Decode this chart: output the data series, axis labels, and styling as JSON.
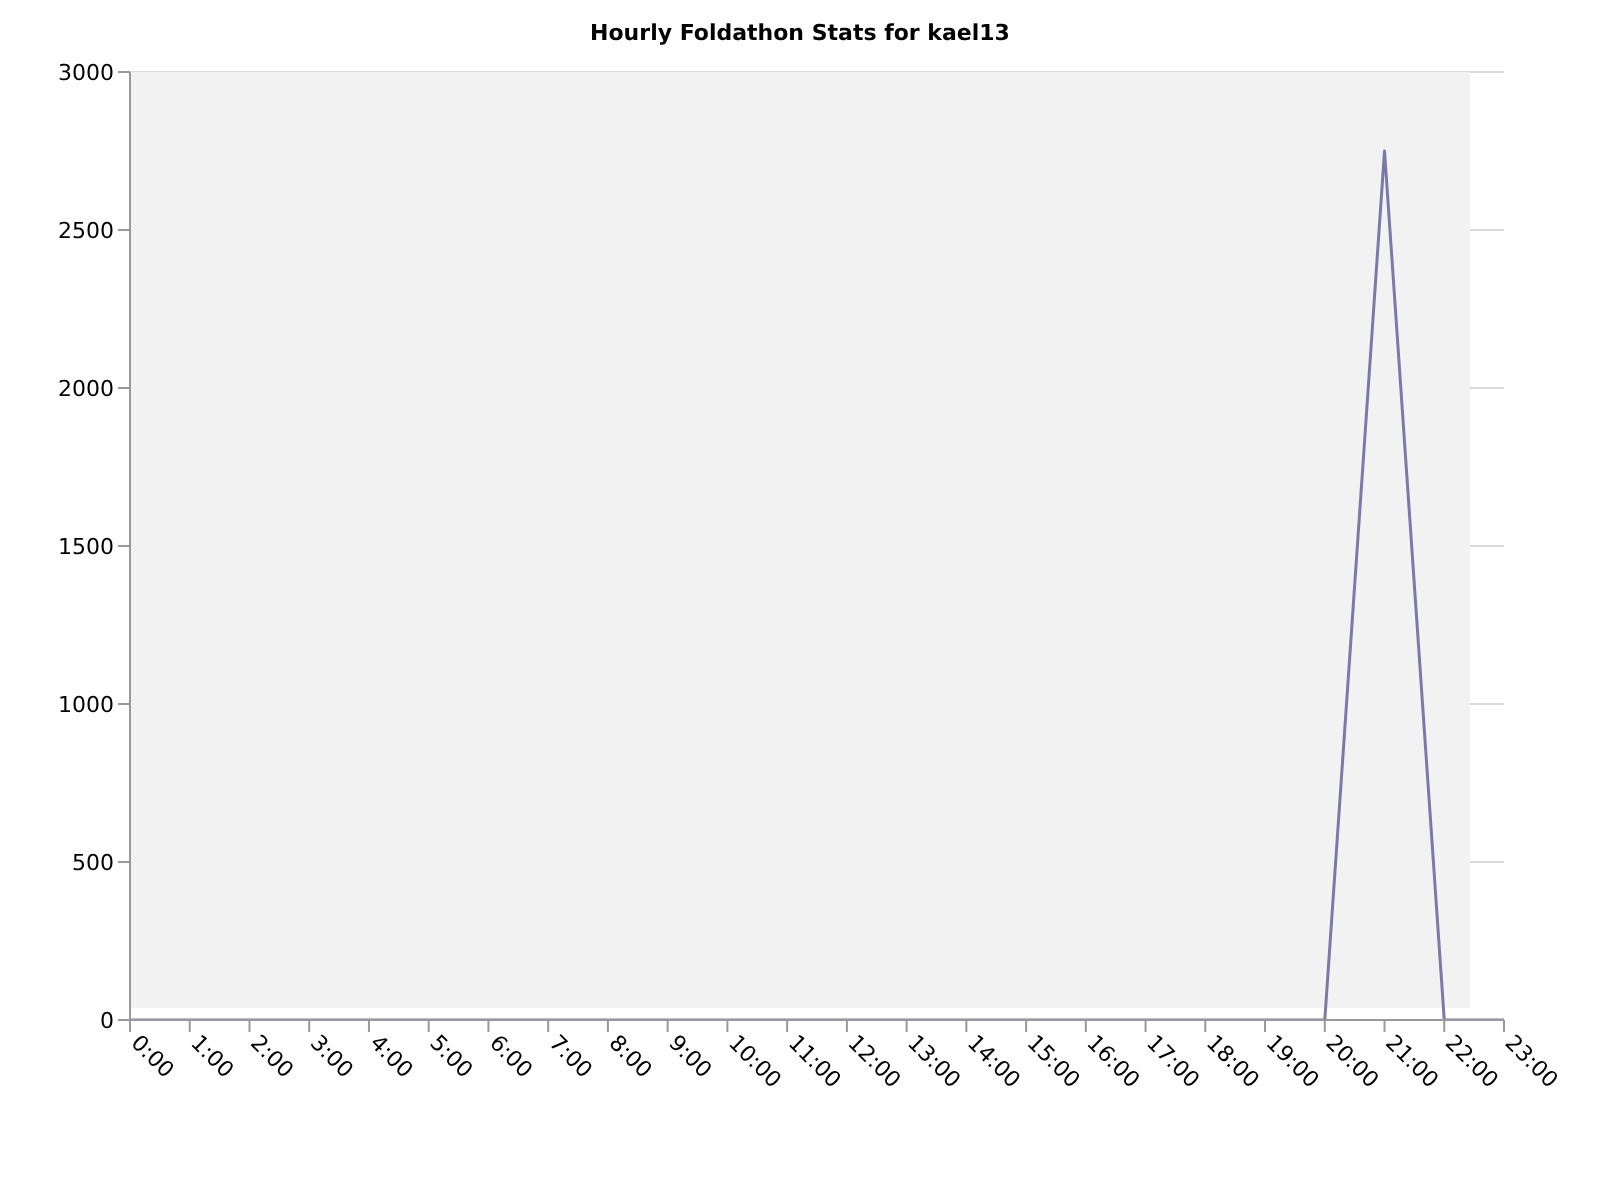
{
  "chart_data": {
    "type": "line",
    "title": "Hourly Foldathon Stats for kael13",
    "categories": [
      "0:00",
      "1:00",
      "2:00",
      "3:00",
      "4:00",
      "5:00",
      "6:00",
      "7:00",
      "8:00",
      "9:00",
      "10:00",
      "11:00",
      "12:00",
      "13:00",
      "14:00",
      "15:00",
      "16:00",
      "17:00",
      "18:00",
      "19:00",
      "20:00",
      "21:00",
      "22:00",
      "23:00"
    ],
    "series": [
      {
        "color": "#7a7aa8",
        "values": [
          0,
          0,
          0,
          0,
          0,
          0,
          0,
          0,
          0,
          0,
          0,
          0,
          0,
          0,
          0,
          0,
          0,
          0,
          0,
          0,
          0,
          2750,
          0,
          0
        ]
      }
    ],
    "ylim": [
      0,
      3000
    ],
    "yticks": [
      0,
      500,
      1000,
      1500,
      2000,
      2500,
      3000
    ],
    "grid": "y",
    "marker": "none",
    "line_style": "solid"
  }
}
